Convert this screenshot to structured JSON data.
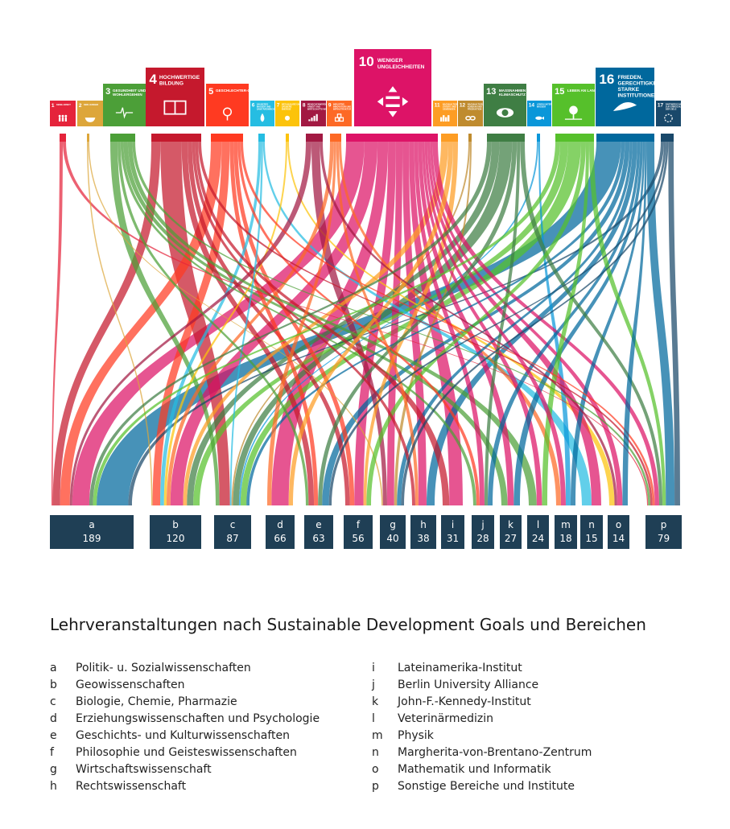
{
  "sdgs": [
    {
      "num": "1",
      "label": "KEINE ARMUT",
      "color": "#e5243b",
      "icon": "people-icon"
    },
    {
      "num": "2",
      "label": "KEIN HUNGER",
      "color": "#dda63a",
      "icon": "bowl-icon"
    },
    {
      "num": "3",
      "label": "GESUNDHEIT UND WOHLERGEHEN",
      "color": "#4c9f38",
      "icon": "heartbeat-icon"
    },
    {
      "num": "4",
      "label": "HOCHWERTIGE BILDUNG",
      "color": "#c5192d",
      "icon": "book-icon"
    },
    {
      "num": "5",
      "label": "GESCHLECHTER-GLEICHHEIT",
      "color": "#ff3a21",
      "icon": "gender-icon"
    },
    {
      "num": "6",
      "label": "SAUBERES WASSER UND SANITÄREINRICHTUNGEN",
      "color": "#26bde2",
      "icon": "water-icon"
    },
    {
      "num": "7",
      "label": "BEZAHLBARE UND SAUBERE ENERGIE",
      "color": "#fcc30b",
      "icon": "sun-icon"
    },
    {
      "num": "8",
      "label": "MENSCHENWÜRDIGE ARBEIT UND WIRTSCHAFTS-WACHSTUM",
      "color": "#a21942",
      "icon": "growth-chart-icon"
    },
    {
      "num": "9",
      "label": "INDUSTRIE, INNOVATION UND INFRASTRUKTUR",
      "color": "#fd6925",
      "icon": "cubes-icon"
    },
    {
      "num": "10",
      "label": "WENIGER UNGLEICHHEITEN",
      "color": "#dd1367",
      "icon": "equality-arrows-icon"
    },
    {
      "num": "11",
      "label": "NACHHALTIGE STÄDTE UND GEMEINDEN",
      "color": "#fd9d24",
      "icon": "city-icon"
    },
    {
      "num": "12",
      "label": "NACHHALTIGE/R KONSUM UND PRODUKTION",
      "color": "#bf8b2e",
      "icon": "infinity-icon"
    },
    {
      "num": "13",
      "label": "MASSNAHMEN ZUM KLIMASCHUTZ",
      "color": "#3f7e44",
      "icon": "eye-globe-icon"
    },
    {
      "num": "14",
      "label": "LEBEN UNTER WASSER",
      "color": "#0a97d9",
      "icon": "fish-icon"
    },
    {
      "num": "15",
      "label": "LEBEN AN LAND",
      "color": "#56c02b",
      "icon": "tree-icon"
    },
    {
      "num": "16",
      "label": "FRIEDEN, GERECHTIGKEIT UND STARKE INSTITUTIONEN",
      "color": "#00689d",
      "icon": "dove-icon"
    },
    {
      "num": "17",
      "label": "PARTNERSCHAFTEN ZUR ERREICHUNG DER ZIELE",
      "color": "#19486a",
      "icon": "flower-ring-icon"
    }
  ],
  "bereiche": [
    {
      "key": "a",
      "count": "189"
    },
    {
      "key": "b",
      "count": "120"
    },
    {
      "key": "c",
      "count": "87"
    },
    {
      "key": "d",
      "count": "66"
    },
    {
      "key": "e",
      "count": "63"
    },
    {
      "key": "f",
      "count": "56"
    },
    {
      "key": "g",
      "count": "40"
    },
    {
      "key": "h",
      "count": "38"
    },
    {
      "key": "i",
      "count": "31"
    },
    {
      "key": "j",
      "count": "28"
    },
    {
      "key": "k",
      "count": "27"
    },
    {
      "key": "l",
      "count": "24"
    },
    {
      "key": "m",
      "count": "18"
    },
    {
      "key": "n",
      "count": "15"
    },
    {
      "key": "o",
      "count": "14"
    },
    {
      "key": "p",
      "count": "79"
    }
  ],
  "legend": {
    "title": "Lehrveranstaltungen nach Sustainable Development Goals und Bereichen",
    "left": [
      {
        "key": "a",
        "text": "Politik- u. Sozialwissenschaften"
      },
      {
        "key": "b",
        "text": "Geowissenschaften"
      },
      {
        "key": "c",
        "text": "Biologie, Chemie, Pharmazie"
      },
      {
        "key": "d",
        "text": "Erziehungswissenschaften und Psychologie"
      },
      {
        "key": "e",
        "text": "Geschichts- und Kulturwissenschaften"
      },
      {
        "key": "f",
        "text": "Philosophie und Geisteswissenschaften"
      },
      {
        "key": "g",
        "text": "Wirtschaftswissenschaft"
      },
      {
        "key": "h",
        "text": "Rechtswissenschaft"
      }
    ],
    "right": [
      {
        "key": "i",
        "text": "Lateinamerika-Institut"
      },
      {
        "key": "j",
        "text": "Berlin University Alliance"
      },
      {
        "key": "k",
        "text": "John-F.-Kennedy-Institut"
      },
      {
        "key": "l",
        "text": "Veterinärmedizin"
      },
      {
        "key": "m",
        "text": "Physik"
      },
      {
        "key": "n",
        "text": "Margherita-von-Brentano-Zentrum"
      },
      {
        "key": "o",
        "text": "Mathematik und Informatik"
      },
      {
        "key": "p",
        "text": "Sonstige Bereiche und Institute"
      }
    ]
  },
  "colors": {
    "node_fill": "#1f3f55",
    "background": "#ffffff"
  }
}
